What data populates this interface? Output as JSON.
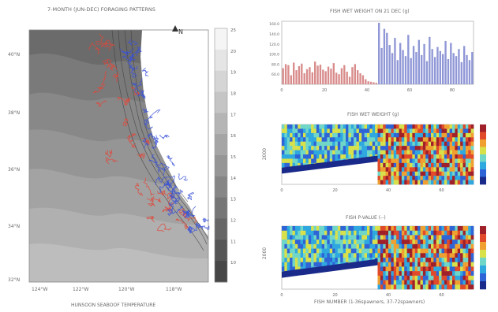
{
  "map": {
    "title": "7-MONTH (JUN-DEC) FORAGING PATTERNS",
    "xlabel": "HUNSOON SEABOOF TEMPERATURE",
    "lat_labels": [
      "40°N",
      "38°N",
      "36°N",
      "34°N",
      "32°N"
    ],
    "lon_labels": [
      "124°W",
      "122°W",
      "120°W",
      "118°W"
    ],
    "north_label": "N",
    "colorbar_ticks": [
      "25",
      "20",
      "19",
      "18",
      "17",
      "16",
      "15",
      "14",
      "13",
      "12",
      "11",
      "10"
    ],
    "track_colors": {
      "red": "#e0483a",
      "blue": "#3a52d8"
    }
  },
  "chart_data": [
    {
      "type": "bar",
      "title": "FISH WET WEIGHT ON 21 DEC (g)",
      "xlabel": "",
      "ylabel": "",
      "x_ticks": [
        "0",
        "20",
        "40",
        "60",
        "80"
      ],
      "y_ticks": [
        "160.0",
        "140.0",
        "120.0",
        "100.0",
        "80.0",
        "60.0"
      ],
      "ylim": [
        40,
        165
      ],
      "series": [
        {
          "color": "#d98c8c",
          "values": [
            72,
            80,
            78,
            58,
            83,
            68,
            76,
            81,
            62,
            70,
            74,
            64,
            85,
            77,
            79,
            69,
            66,
            75,
            71,
            82,
            63,
            60,
            72,
            78,
            65,
            55,
            74,
            80,
            68,
            62,
            58,
            50,
            46,
            45,
            44,
            43
          ]
        },
        {
          "color": "#8f97d6",
          "values": [
            162,
            112,
            150,
            142,
            118,
            102,
            132,
            88,
            122,
            108,
            96,
            138,
            92,
            116,
            104,
            128,
            98,
            120,
            86,
            134,
            110,
            94,
            114,
            106,
            100,
            126,
            90,
            122,
            102,
            96,
            110,
            84,
            116,
            98,
            88,
            104
          ]
        }
      ]
    },
    {
      "type": "heatmap",
      "title": "FISH WET WEIGHT (g)",
      "ylabel": "2000",
      "x_ticks": [
        "0",
        "20",
        "40",
        "60"
      ],
      "colormap": [
        "#1a2a8a",
        "#2e64d6",
        "#2fa8e0",
        "#6fd6c8",
        "#d8e04a",
        "#f0a030",
        "#e04a2a",
        "#a0202a"
      ]
    },
    {
      "type": "heatmap",
      "title": "FISH P-VALUE (--)",
      "ylabel": "2000",
      "xlabel": "FISH NUMBER (1-36spawners, 37-72spawners)",
      "x_ticks": [
        "0",
        "20",
        "40",
        "60"
      ],
      "colormap": [
        "#1a2a8a",
        "#2e64d6",
        "#2fa8e0",
        "#6fd6c8",
        "#d8e04a",
        "#f0a030",
        "#e04a2a",
        "#a0202a"
      ]
    }
  ]
}
